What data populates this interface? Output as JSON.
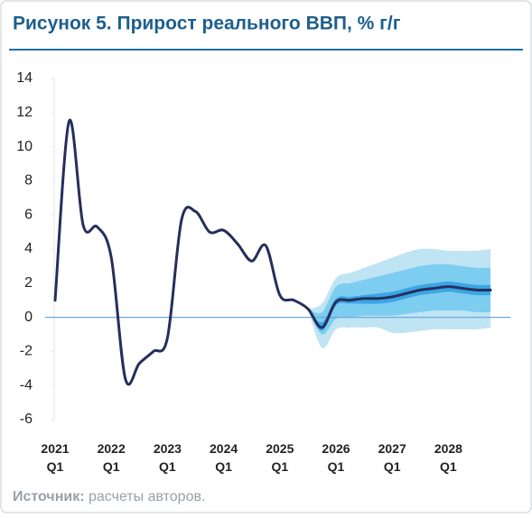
{
  "chart_data": {
    "type": "fan",
    "title": "Рисунок 5. Прирост реального ВВП, % г/г",
    "source_label": "Источник:",
    "source_text": "расчеты авторов.",
    "categories": [
      "2021 Q1",
      null,
      null,
      null,
      "2022 Q1",
      null,
      null,
      null,
      "2023 Q1",
      null,
      null,
      null,
      "2024 Q1",
      null,
      null,
      null,
      "2025 Q1",
      null,
      null,
      null,
      "2026 Q1",
      null,
      null,
      null,
      "2027 Q1",
      null,
      null,
      null,
      "2028 Q1",
      null,
      null,
      null
    ],
    "ylim": [
      -6,
      14
    ],
    "yticks": [
      -6,
      -4,
      -2,
      0,
      2,
      4,
      6,
      8,
      10,
      12,
      14
    ],
    "line_color": "#262e5e",
    "zero_line_color": "#6fa8d6",
    "values": [
      1.0,
      11.5,
      5.4,
      5.3,
      3.5,
      -3.6,
      -2.7,
      -2.0,
      -1.2,
      5.7,
      6.2,
      5.0,
      5.1,
      4.3,
      3.3,
      4.2,
      1.3,
      1.0,
      0.5,
      -0.6,
      0.9,
      1.0,
      1.1,
      1.1,
      1.2,
      1.4,
      1.6,
      1.7,
      1.8,
      1.7,
      1.6,
      1.6
    ],
    "bands": [
      {
        "color": "#bfe4f4",
        "lower": [
          null,
          null,
          null,
          null,
          null,
          null,
          null,
          null,
          null,
          null,
          null,
          null,
          null,
          null,
          null,
          null,
          null,
          null,
          0.5,
          -1.8,
          -0.7,
          -0.6,
          -0.6,
          -0.6,
          -0.9,
          -0.9,
          -0.8,
          -0.7,
          -0.7,
          -0.7,
          -0.7,
          -0.6
        ],
        "upper": [
          null,
          null,
          null,
          null,
          null,
          null,
          null,
          null,
          null,
          null,
          null,
          null,
          null,
          null,
          null,
          null,
          null,
          null,
          0.5,
          0.8,
          2.3,
          2.6,
          2.9,
          3.2,
          3.5,
          3.8,
          4.0,
          4.0,
          3.9,
          3.9,
          3.9,
          4.0
        ]
      },
      {
        "color": "#7dcdf0",
        "lower": [
          null,
          null,
          null,
          null,
          null,
          null,
          null,
          null,
          null,
          null,
          null,
          null,
          null,
          null,
          null,
          null,
          null,
          null,
          0.5,
          -1.0,
          -0.1,
          0.0,
          0.1,
          0.1,
          0.1,
          0.2,
          0.3,
          0.4,
          0.4,
          0.4,
          0.3,
          0.3
        ],
        "upper": [
          null,
          null,
          null,
          null,
          null,
          null,
          null,
          null,
          null,
          null,
          null,
          null,
          null,
          null,
          null,
          null,
          null,
          null,
          0.5,
          0.3,
          1.8,
          2.0,
          2.2,
          2.4,
          2.6,
          2.8,
          3.0,
          3.1,
          3.1,
          3.0,
          2.9,
          2.9
        ]
      },
      {
        "color": "#3aa6e4",
        "lower": [
          null,
          null,
          null,
          null,
          null,
          null,
          null,
          null,
          null,
          null,
          null,
          null,
          null,
          null,
          null,
          null,
          null,
          null,
          0.5,
          -0.8,
          0.7,
          0.8,
          0.8,
          0.8,
          0.9,
          1.1,
          1.3,
          1.4,
          1.5,
          1.4,
          1.3,
          1.3
        ],
        "upper": [
          null,
          null,
          null,
          null,
          null,
          null,
          null,
          null,
          null,
          null,
          null,
          null,
          null,
          null,
          null,
          null,
          null,
          null,
          0.5,
          -0.3,
          1.1,
          1.2,
          1.3,
          1.4,
          1.5,
          1.7,
          1.9,
          2.0,
          2.1,
          2.0,
          1.9,
          1.9
        ]
      }
    ]
  }
}
